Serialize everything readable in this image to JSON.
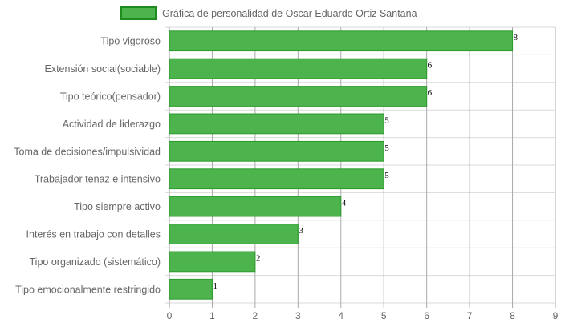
{
  "chart_data": {
    "type": "bar",
    "orientation": "horizontal",
    "categories": [
      "Tipo vigoroso",
      "Extensión social(sociable)",
      "Tipo teórico(pensador)",
      "Actividad de liderazgo",
      "Toma de decisiones/impulsividad",
      "Trabajador tenaz e intensivo",
      "Tipo siempre activo",
      "Interés en trabajo con detalles",
      "Tipo organizado (sistemático)",
      "Tipo emocionalmente restringido"
    ],
    "series": [
      {
        "name": "Gráfica de personalidad de Oscar Eduardo Ortiz Santana",
        "values": [
          8,
          6,
          6,
          5,
          5,
          5,
          4,
          3,
          2,
          1
        ]
      }
    ],
    "xlim": [
      0,
      9
    ],
    "xticks": [
      0,
      1,
      2,
      3,
      4,
      5,
      6,
      7,
      8,
      9
    ],
    "grid": true,
    "legend_position": "top",
    "colors": {
      "bar_fill": "#4db34d",
      "bar_border": "#2a9a2a",
      "grid": "#d9d9d9",
      "value_grid": "#aaaaaa",
      "legend_border": "#1e8c1e"
    }
  }
}
